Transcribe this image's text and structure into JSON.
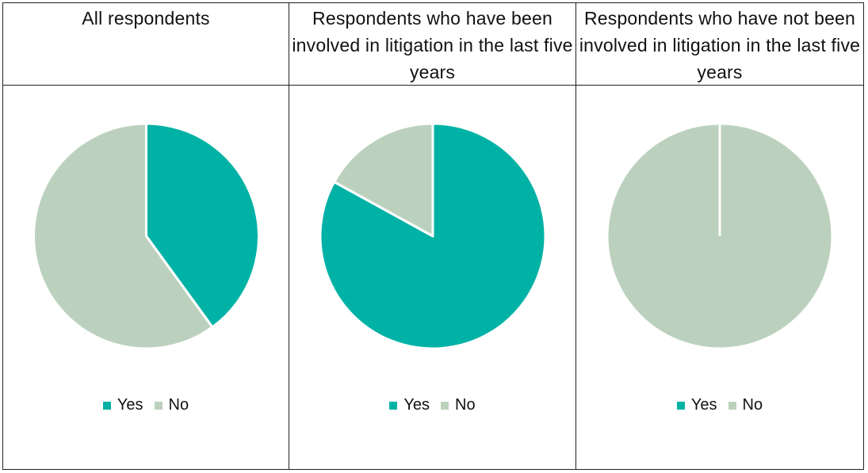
{
  "colors": {
    "yes": "#00b2a5",
    "no": "#bcd1bd"
  },
  "legend": {
    "yes_label": "Yes",
    "no_label": "No"
  },
  "chart_data": [
    {
      "type": "pie",
      "title": "All respondents",
      "categories": [
        "Yes",
        "No"
      ],
      "values": [
        40,
        60
      ]
    },
    {
      "type": "pie",
      "title": "Respondents who have been involved in litigation in the last five years",
      "categories": [
        "Yes",
        "No"
      ],
      "values": [
        83,
        17
      ]
    },
    {
      "type": "pie",
      "title": "Respondents who have not been involved in litigation in the last five years",
      "categories": [
        "Yes",
        "No"
      ],
      "values": [
        0,
        100
      ]
    }
  ]
}
